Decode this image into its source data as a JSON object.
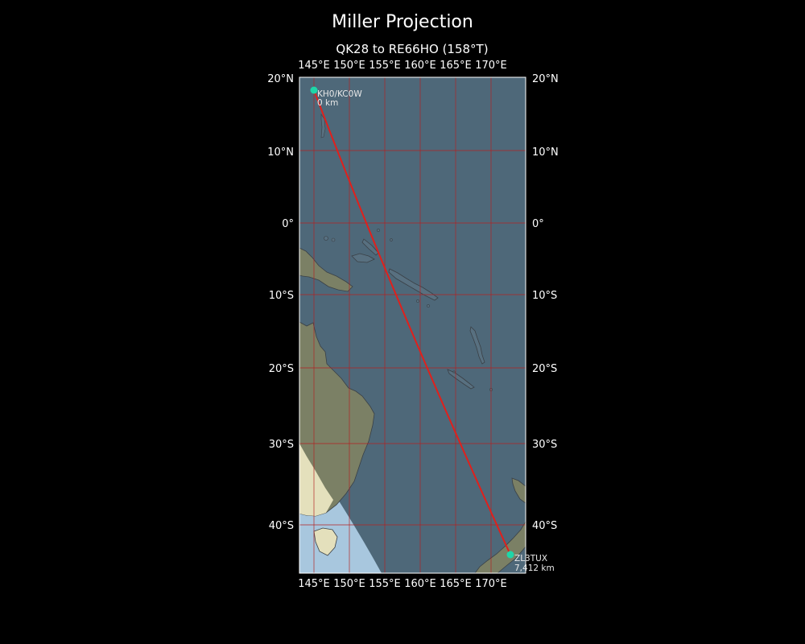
{
  "title": "Miller Projection",
  "subtitle": "QK28 to RE66HO (158°T)",
  "lon_ticks": [
    "145°E",
    "150°E",
    "155°E",
    "160°E",
    "165°E",
    "170°E"
  ],
  "lat_ticks": [
    "20°N",
    "10°N",
    "0°",
    "10°S",
    "20°S",
    "30°S",
    "40°S"
  ],
  "map_extent": {
    "lon": [
      143.0,
      175.0
    ],
    "lat": [
      -46.5,
      20.0
    ]
  },
  "projection": "miller",
  "colors": {
    "background": "#000000",
    "ocean": "#4e6879",
    "land": "#7b8065",
    "daylight_land": "#e4e0bc",
    "daylight_sea": "#a8c7de",
    "gridline": "#b22222",
    "path": "#e0201c",
    "station": "#1fd6a8"
  },
  "path": {
    "bearing": "158°T",
    "from_grid": "QK28",
    "to_grid": "RE66HO"
  },
  "stations": [
    {
      "call": "KH0/KC0W",
      "distance": "0 km",
      "lon": 145.75,
      "lat": 18.25
    },
    {
      "call": "ZL3TUX",
      "distance": "7,412 km",
      "lon": 172.75,
      "lat": -43.6
    }
  ]
}
